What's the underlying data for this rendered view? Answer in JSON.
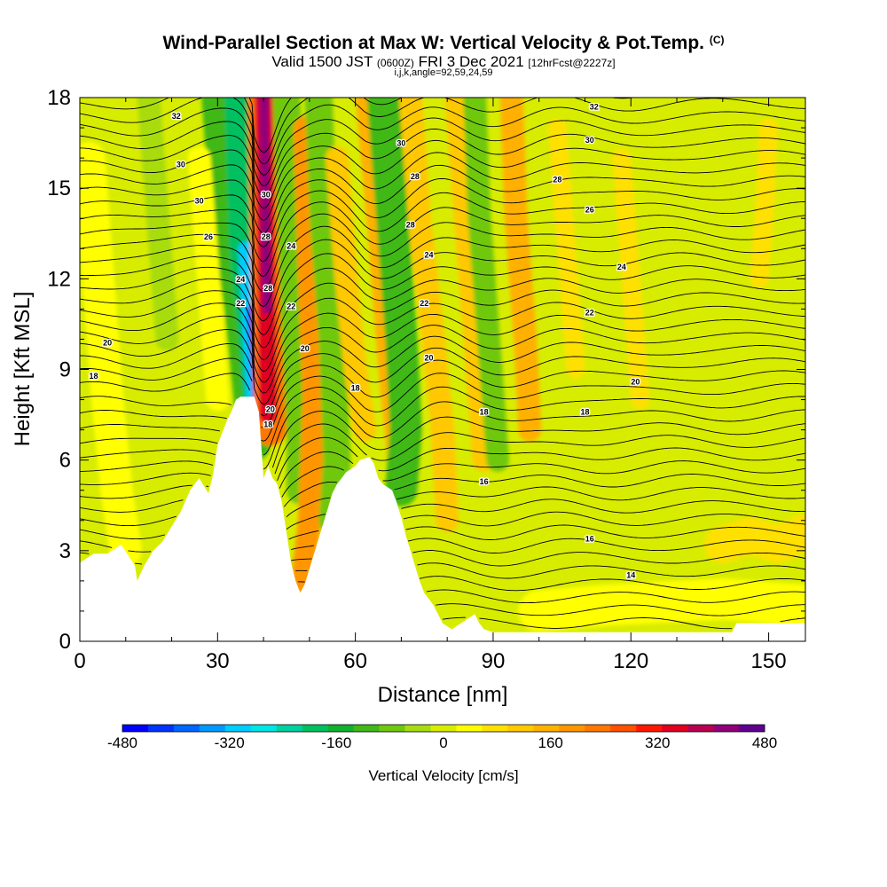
{
  "title": {
    "main": "Wind-Parallel Section at Max W: Vertical Velocity & Pot.Temp.",
    "copyright": "(C)",
    "valid_prefix": "Valid 1500 JST",
    "valid_utc": "(0600Z)",
    "valid_date": "FRI 3 Dec 2021",
    "forecast": "[12hrFcst@2227z]",
    "params": "i,j,k,angle=92,59,24,59"
  },
  "chart_data": {
    "type": "heatmap",
    "xlabel": "Distance [nm]",
    "ylabel": "Height [Kft MSL]",
    "xlim": [
      0,
      158
    ],
    "ylim": [
      0,
      18
    ],
    "x_ticks": [
      0,
      30,
      60,
      90,
      120,
      150
    ],
    "y_ticks": [
      0,
      3,
      6,
      9,
      12,
      15,
      18
    ],
    "x_tick_labels": [
      "0",
      "30",
      "60",
      "90",
      "120",
      "150"
    ],
    "y_tick_labels": [
      "0",
      "3",
      "6",
      "9",
      "12",
      "15",
      "18"
    ],
    "colorbar": {
      "label": "Vertical Velocity [cm/s]",
      "range": [
        -480,
        480
      ],
      "tick_values": [
        -480,
        -320,
        -160,
        0,
        160,
        320,
        480
      ],
      "tick_labels": [
        "-480",
        "-320",
        "-160",
        "0",
        "160",
        "320",
        "480"
      ],
      "colors": [
        "#0000ff",
        "#0033ff",
        "#0066ff",
        "#0099ff",
        "#00ccff",
        "#00e5e5",
        "#00d0a0",
        "#00c060",
        "#10b030",
        "#40b818",
        "#70c810",
        "#a8dc10",
        "#d8ec00",
        "#ffff00",
        "#ffe000",
        "#ffc800",
        "#ffb000",
        "#ff9600",
        "#ff7800",
        "#ff5000",
        "#ff1800",
        "#e00020",
        "#b80050",
        "#900078",
        "#600090"
      ]
    },
    "terrain_kft": [
      [
        0,
        2.6
      ],
      [
        3,
        2.9
      ],
      [
        6,
        2.9
      ],
      [
        9,
        3.2
      ],
      [
        12,
        2.5
      ],
      [
        12.5,
        2.0
      ],
      [
        14,
        2.5
      ],
      [
        16,
        3.0
      ],
      [
        18,
        3.3
      ],
      [
        20,
        3.8
      ],
      [
        22,
        4.3
      ],
      [
        24,
        5.0
      ],
      [
        26,
        5.4
      ],
      [
        28,
        4.9
      ],
      [
        29,
        5.5
      ],
      [
        30,
        6.5
      ],
      [
        32,
        7.3
      ],
      [
        33,
        7.6
      ],
      [
        34,
        8.0
      ],
      [
        35,
        8.1
      ],
      [
        37,
        8.1
      ],
      [
        38,
        8.1
      ],
      [
        39,
        7.6
      ],
      [
        40,
        5.4
      ],
      [
        41,
        5.8
      ],
      [
        42,
        5.4
      ],
      [
        43,
        5.2
      ],
      [
        44,
        4.6
      ],
      [
        45,
        3.6
      ],
      [
        46,
        2.6
      ],
      [
        47,
        2.0
      ],
      [
        48,
        1.6
      ],
      [
        49,
        1.9
      ],
      [
        50,
        2.4
      ],
      [
        51,
        2.9
      ],
      [
        52,
        3.4
      ],
      [
        53,
        3.9
      ],
      [
        54,
        4.4
      ],
      [
        55,
        4.9
      ],
      [
        56,
        5.2
      ],
      [
        57,
        5.4
      ],
      [
        58,
        5.6
      ],
      [
        60,
        5.8
      ],
      [
        61,
        6.0
      ],
      [
        63,
        6.1
      ],
      [
        64,
        5.9
      ],
      [
        65,
        5.4
      ],
      [
        66,
        5.2
      ],
      [
        67,
        5.1
      ],
      [
        68,
        5.0
      ],
      [
        69,
        4.6
      ],
      [
        70,
        4.1
      ],
      [
        71,
        3.5
      ],
      [
        72,
        3.0
      ],
      [
        73,
        2.5
      ],
      [
        74,
        2.0
      ],
      [
        75,
        1.6
      ],
      [
        77,
        1.2
      ],
      [
        78,
        0.9
      ],
      [
        79,
        0.6
      ],
      [
        81,
        0.4
      ],
      [
        83,
        0.6
      ],
      [
        86,
        0.9
      ],
      [
        87,
        0.6
      ],
      [
        88,
        0.4
      ],
      [
        90,
        0.3
      ],
      [
        92,
        0.3
      ],
      [
        95,
        0.3
      ],
      [
        100,
        0.3
      ],
      [
        120,
        0.3
      ],
      [
        142,
        0.3
      ],
      [
        143,
        0.6
      ],
      [
        150,
        0.6
      ],
      [
        158,
        0.6
      ]
    ],
    "theta_contour_labels": [
      {
        "text": "32",
        "x": 21,
        "y": 17.4
      },
      {
        "text": "30",
        "x": 22,
        "y": 15.8
      },
      {
        "text": "30",
        "x": 26,
        "y": 14.6
      },
      {
        "text": "26",
        "x": 28,
        "y": 13.4
      },
      {
        "text": "24",
        "x": 35,
        "y": 12.0
      },
      {
        "text": "22",
        "x": 35,
        "y": 11.2
      },
      {
        "text": "20",
        "x": 6,
        "y": 9.9
      },
      {
        "text": "18",
        "x": 3,
        "y": 8.8
      },
      {
        "text": "30",
        "x": 40.5,
        "y": 14.8
      },
      {
        "text": "28",
        "x": 40.5,
        "y": 13.4
      },
      {
        "text": "28",
        "x": 41,
        "y": 11.7
      },
      {
        "text": "20",
        "x": 41.5,
        "y": 7.7
      },
      {
        "text": "18",
        "x": 41,
        "y": 7.2
      },
      {
        "text": "24",
        "x": 46,
        "y": 13.1
      },
      {
        "text": "22",
        "x": 46,
        "y": 11.1
      },
      {
        "text": "20",
        "x": 49,
        "y": 9.7
      },
      {
        "text": "18",
        "x": 60,
        "y": 8.4
      },
      {
        "text": "30",
        "x": 70,
        "y": 16.5
      },
      {
        "text": "28",
        "x": 73,
        "y": 15.4
      },
      {
        "text": "28",
        "x": 72,
        "y": 13.8
      },
      {
        "text": "24",
        "x": 76,
        "y": 12.8
      },
      {
        "text": "22",
        "x": 75,
        "y": 11.2
      },
      {
        "text": "20",
        "x": 76,
        "y": 9.4
      },
      {
        "text": "18",
        "x": 88,
        "y": 7.6
      },
      {
        "text": "16",
        "x": 88,
        "y": 5.3
      },
      {
        "text": "32",
        "x": 112,
        "y": 17.7
      },
      {
        "text": "30",
        "x": 111,
        "y": 16.6
      },
      {
        "text": "28",
        "x": 104,
        "y": 15.3
      },
      {
        "text": "26",
        "x": 111,
        "y": 14.3
      },
      {
        "text": "24",
        "x": 118,
        "y": 12.4
      },
      {
        "text": "22",
        "x": 111,
        "y": 10.9
      },
      {
        "text": "20",
        "x": 121,
        "y": 8.6
      },
      {
        "text": "18",
        "x": 110,
        "y": 7.6
      },
      {
        "text": "16",
        "x": 111,
        "y": 3.4
      },
      {
        "text": "14",
        "x": 120,
        "y": 2.2
      }
    ]
  }
}
